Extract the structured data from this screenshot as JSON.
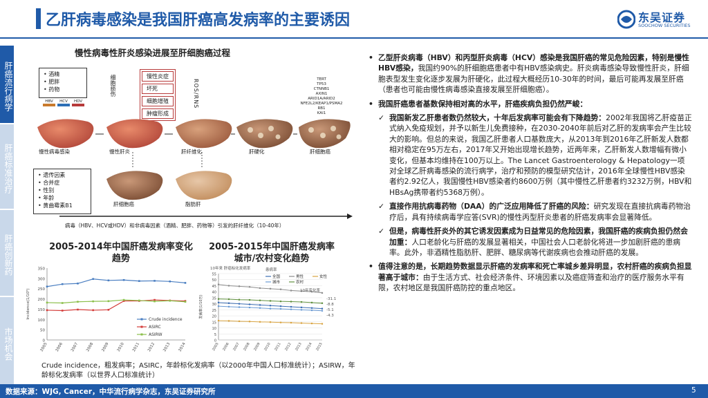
{
  "header": {
    "title": "乙肝病毒感染是我国肝癌高发病率的主要诱因",
    "logo_cn": "东吴证券",
    "logo_en": "SOOCHOW SECURITIES",
    "logo_sub": "东吴证券"
  },
  "side_nav": [
    {
      "label": "肝癌流行病学",
      "active": true
    },
    {
      "label": "肝癌标准治疗",
      "active": false
    },
    {
      "label": "肝癌创新药",
      "active": false
    },
    {
      "label": "市场机会",
      "active": false
    }
  ],
  "figure": {
    "title": "慢性病毒性肝炎感染进展至肝细胞癌过程",
    "risk_top": [
      "酒精",
      "肥胖",
      "药物"
    ],
    "risk_bottom": [
      "遗传因素",
      "合并症",
      "性别",
      "年龄",
      "黄曲霉素B1"
    ],
    "stages": [
      "慢性炎症",
      "坏死",
      "细胞增殖",
      "肿瘤形成"
    ],
    "side_label": "细胞损伤",
    "ros_label": "ROS/RNS",
    "genes": [
      "TERT",
      "TP53",
      "CTNNB1",
      "AXIN1",
      "ARID1A/ARID2",
      "NFE2L2/KEAP1/PSMA2",
      "RB1",
      "KAI1"
    ],
    "viruses": [
      "HBV",
      "HCV",
      "HDV"
    ],
    "liver_labels": [
      "慢性病毒感染",
      "慢性肝炎",
      "肝纤维化",
      "肝硬化",
      "肝细胞癌",
      "肝细胞癌",
      "脂肪肝"
    ],
    "caption": "病毒（HBV、HCV或HDV）和非病毒因素（酒精、肥胖、药物等）引发的肝纤维化（10-40年）"
  },
  "charts": {
    "title1": "2005-2014年中国肝癌发病率变化趋势",
    "title2": "2005-2015年中国肝癌发病率城市/农村变化趋势",
    "note": "Crude incidence，粗发病率；ASIRC，年龄标化发病率（以2000年中国人口标准统计）；ASIRW，年龄标化发病率（以世界人口标准统计）"
  },
  "chart_data": [
    {
      "type": "line",
      "title": "",
      "ylabel": "Incidence(1/10⁵)",
      "x": [
        2005,
        2006,
        2007,
        2008,
        2009,
        2010,
        2011,
        2012,
        2013,
        2014
      ],
      "ylim": [
        0,
        350
      ],
      "yticks": [
        0,
        50,
        100,
        150,
        200,
        250,
        300,
        350
      ],
      "series": [
        {
          "name": "Crude incidence",
          "color": "#4a7ec1",
          "values": [
            260,
            272,
            275,
            297,
            290,
            292,
            287,
            288,
            285,
            278
          ]
        },
        {
          "name": "ASIRC",
          "color": "#d43d3a",
          "values": [
            145,
            143,
            148,
            145,
            147,
            190,
            190,
            195,
            192,
            190
          ]
        },
        {
          "name": "ASIRW",
          "color": "#8cbf4b",
          "values": [
            182,
            180,
            186,
            188,
            189,
            195,
            192,
            188,
            191,
            186
          ]
        }
      ],
      "legend": "bottom-right"
    },
    {
      "type": "line",
      "title": "",
      "ylabel": "发病率(1/10万)",
      "legend_title": "患病率",
      "x": [
        2005,
        2006,
        2007,
        2008,
        2009,
        2010,
        2011,
        2012,
        2013,
        2014,
        2015
      ],
      "ylim": [
        0,
        55
      ],
      "yticks": [
        0,
        5,
        10,
        15,
        20,
        25,
        30,
        35,
        40,
        45,
        50,
        55
      ],
      "annotation": "10年变化率",
      "series": [
        {
          "name": "全国",
          "color": "#3b6db3",
          "values": [
            31,
            30.5,
            30,
            29.5,
            29,
            28.5,
            28,
            27.5,
            27,
            26.5,
            26
          ]
        },
        {
          "name": "男性",
          "color": "#8d8d8d",
          "values": [
            46,
            45,
            44.5,
            44,
            43,
            42.5,
            42,
            41,
            40.5,
            40,
            39
          ]
        },
        {
          "name": "女性",
          "color": "#d9a441",
          "values": [
            16,
            15.8,
            15.5,
            15.3,
            15,
            14.8,
            14.5,
            14.3,
            14,
            13.7,
            13.4
          ]
        },
        {
          "name": "城市",
          "color": "#6b9bd4",
          "values": [
            28,
            27.6,
            27.2,
            26.9,
            26.5,
            26,
            25.8,
            25.4,
            25,
            24.6,
            24.2
          ]
        },
        {
          "name": "农村",
          "color": "#5f8f3d",
          "values": [
            34,
            33.8,
            33.4,
            33.2,
            32.8,
            32.4,
            32,
            31.8,
            31.5,
            31,
            30.5
          ]
        }
      ],
      "change_labels": [
        "-31.1",
        "-8.8",
        "-5.1",
        "-4.3"
      ],
      "top_note": "10年来 肝癌标化发病率"
    }
  ],
  "bullets": [
    {
      "bold": "乙型肝炎病毒（HBV）和丙型肝炎病毒（HCV）感染是我国肝癌的常见危险因素，特别是慢性HBV感染，",
      "text": "我国约90%的肝细胞癌患者中有HBV感染病史。肝炎病毒感染导致慢性肝炎，肝细胞表型发生变化逐步发展为肝硬化，此过程大概经历10-30年的时间，最后可能再发展至肝癌（患者也可能由慢性病毒感染直接发展至肝细胞癌）。"
    },
    {
      "bold": "我国肝癌患者基数保持相对高的水平，肝癌疾病负担仍然严峻：",
      "text": ""
    }
  ],
  "checks": [
    {
      "bold": "我国新发乙肝患者数仍然较大，十年后发病率可能会有下降趋势：",
      "text": "2002年我国将乙肝疫苗正式纳入免疫规划，并予以新生儿免费接种，在2030-2040年前后对乙肝的发病率会产生比较大的影响。但总的来说，我国乙肝患者人口基数庞大，从2013年到2016年乙肝新发人数都相对稳定在95万左右，2017年又开始出现增长趋势，近两年来，乙肝新发人数增幅有微小变化，但基本均维持在100万以上。The Lancet Gastroenterology & Hepatology一项对全球乙肝病毒感染的流行病学，治疗和预防的模型研究估计，2016年全球慢性HBV感染者约2.92亿人，我国慢性HBV感染者约8600万例（其中慢性乙肝患者约3232万例，HBV和HBsAg携带者约5368万例）。"
    },
    {
      "bold": "直接作用抗病毒药物（DAA）的广泛应用降低了肝癌的风险：",
      "text": "研究发现在直接抗病毒药物治疗后，具有持续病毒学应答(SVR)的慢性丙型肝炎患者的肝癌发病率会显著降低。"
    },
    {
      "bold": "但是，病毒性肝炎外的其它诱发因素成为日益常见的危险因素，我国肝癌的疾病负担仍然会加重：",
      "text": "人口老龄化与肝癌的发展显著相关，中国社会人口老龄化将进一步加剧肝癌的患病率。此外，非酒精性脂肪肝、肥胖、糖尿病等代谢疾病也会推动肝癌的发展。"
    }
  ],
  "last_bullet": {
    "bold": "值得注意的是，长期趋势数据显示肝癌的发病率和死亡率城乡差异明显，农村肝癌的疾病负担显著高于城市：",
    "text": "由于生活方式、社会经济条件、环境因素以及癌症筛查和治疗的医疗服务水平有限，农村地区是我国肝癌防控的重点地区。"
  },
  "footer": {
    "source": "数据来源：WJG, Cancer，中华流行病学杂志，东吴证券研究所",
    "page": "5"
  }
}
